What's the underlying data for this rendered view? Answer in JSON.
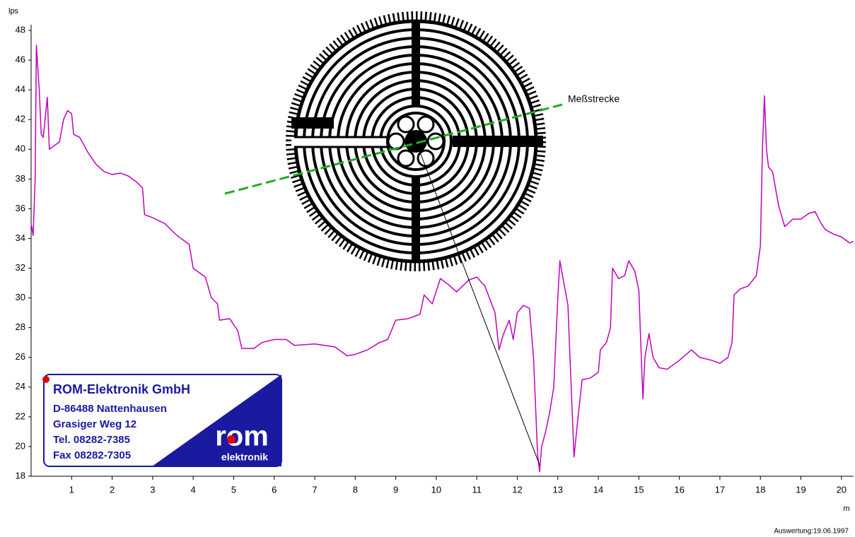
{
  "chart_data": {
    "type": "line",
    "ylabel": "lps",
    "xlabel": "m",
    "annotation": "Meßstrecke",
    "footer": "Auswertung:19.06.1997",
    "logo": {
      "company": "ROM-Elektronik GmbH",
      "lines": [
        "D-86488 Nattenhausen",
        "Grasiger Weg 12",
        "Tel. 08282-7385",
        "Fax 08282-7305"
      ],
      "brand": "rom",
      "brand_sub": "elektronik"
    },
    "color": "#c000c0",
    "x": [
      0,
      0.05,
      0.1,
      0.13,
      0.2,
      0.25,
      0.3,
      0.4,
      0.45,
      0.55,
      0.7,
      0.8,
      0.9,
      1.0,
      1.05,
      1.2,
      1.4,
      1.6,
      1.8,
      2.0,
      2.2,
      2.4,
      2.6,
      2.75,
      2.8,
      3.0,
      3.3,
      3.6,
      3.9,
      4.0,
      4.3,
      4.45,
      4.6,
      4.65,
      4.9,
      5.1,
      5.2,
      5.5,
      5.7,
      6.0,
      6.3,
      6.5,
      7.0,
      7.5,
      7.8,
      8.0,
      8.3,
      8.6,
      8.8,
      9.0,
      9.3,
      9.6,
      9.7,
      9.9,
      10.1,
      10.3,
      10.5,
      10.8,
      11.0,
      11.2,
      11.45,
      11.55,
      11.65,
      11.8,
      11.9,
      12.0,
      12.15,
      12.3,
      12.4,
      12.5,
      12.55,
      12.6,
      12.7,
      12.8,
      12.9,
      13.0,
      13.05,
      13.15,
      13.25,
      13.3,
      13.4,
      13.5,
      13.6,
      13.8,
      14.0,
      14.05,
      14.2,
      14.3,
      14.35,
      14.5,
      14.65,
      14.75,
      14.9,
      15.0,
      15.05,
      15.1,
      15.15,
      15.25,
      15.35,
      15.5,
      15.7,
      16.0,
      16.3,
      16.5,
      16.8,
      17.0,
      17.2,
      17.3,
      17.35,
      17.5,
      17.7,
      17.9,
      18.0,
      18.05,
      18.1,
      18.15,
      18.2,
      18.3,
      18.45,
      18.6,
      18.8,
      19.0,
      19.2,
      19.35,
      19.5,
      19.6,
      19.8,
      20.0,
      20.2,
      20.3
    ],
    "values": [
      35,
      34.2,
      38,
      47,
      44,
      41,
      40.8,
      43.5,
      40,
      40.2,
      40.5,
      42,
      42.6,
      42.4,
      41,
      40.8,
      39.8,
      39,
      38.5,
      38.3,
      38.4,
      38.2,
      37.8,
      37.4,
      35.6,
      35.4,
      35,
      34.2,
      33.6,
      32,
      31.4,
      30,
      29.6,
      28.5,
      28.6,
      27.8,
      26.6,
      26.6,
      27,
      27.2,
      27.2,
      26.8,
      26.9,
      26.7,
      26.1,
      26.2,
      26.5,
      27,
      27.2,
      28.5,
      28.6,
      28.9,
      30.2,
      29.6,
      31.3,
      30.9,
      30.4,
      31.2,
      31.4,
      30.8,
      29,
      26.5,
      27.5,
      28.5,
      27.2,
      29,
      29.5,
      29.3,
      26,
      19.5,
      18.3,
      20,
      21,
      22.3,
      24,
      30,
      32.5,
      31,
      29.5,
      26,
      19.3,
      22,
      24.5,
      24.6,
      25,
      26.5,
      27,
      28,
      32,
      31.3,
      31.5,
      32.5,
      31.8,
      30.5,
      26.8,
      23.2,
      26,
      27.6,
      26,
      25.3,
      25.2,
      25.8,
      26.5,
      26,
      25.8,
      25.6,
      26,
      27,
      30.2,
      30.6,
      30.8,
      31.5,
      33.5,
      40,
      43.6,
      40,
      38.8,
      38.5,
      36.2,
      34.8,
      35.3,
      35.3,
      35.7,
      35.8,
      35,
      34.6,
      34.3,
      34.1,
      33.7,
      33.8
    ],
    "xlim": [
      0,
      20.3
    ],
    "ylim": [
      18,
      48
    ],
    "xticks": [
      1,
      2,
      3,
      4,
      5,
      6,
      7,
      8,
      9,
      10,
      11,
      12,
      13,
      14,
      15,
      16,
      17,
      18,
      19,
      20
    ],
    "yticks": [
      18,
      20,
      22,
      24,
      26,
      28,
      30,
      32,
      34,
      36,
      38,
      40,
      42,
      44,
      46,
      48
    ]
  }
}
